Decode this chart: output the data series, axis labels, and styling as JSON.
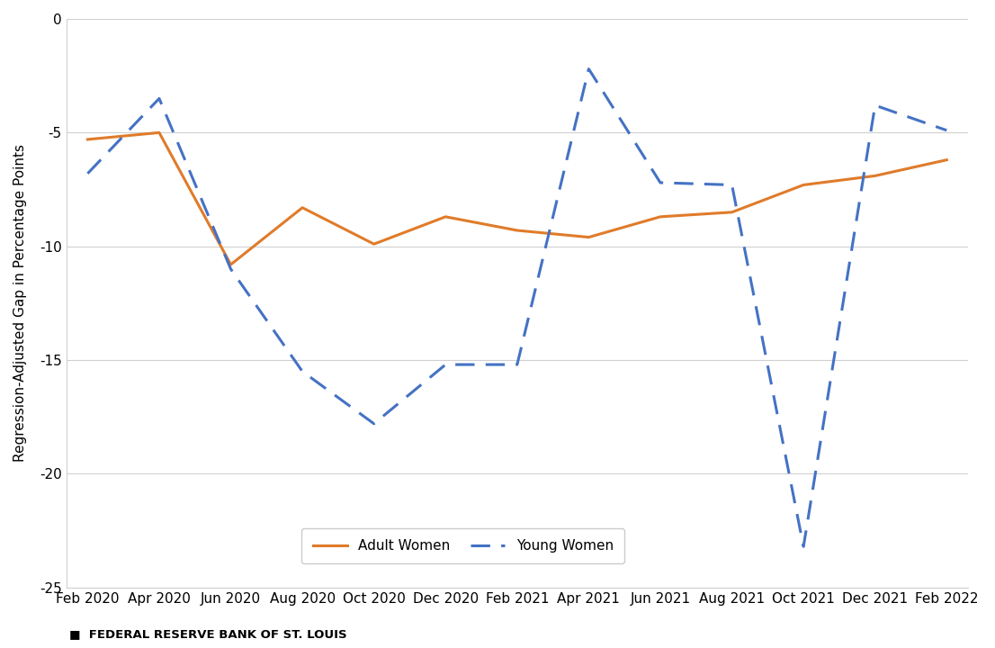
{
  "x_labels": [
    "Feb 2020",
    "Apr 2020",
    "Jun 2020",
    "Aug 2020",
    "Oct 2020",
    "Dec 2020",
    "Feb 2021",
    "Apr 2021",
    "Jun 2021",
    "Aug 2021",
    "Oct 2021",
    "Dec 2021",
    "Feb 2022"
  ],
  "adult_women": [
    -5.3,
    -5.0,
    -10.8,
    -8.3,
    -9.9,
    -8.7,
    -9.3,
    -9.6,
    -8.7,
    -8.5,
    -7.3,
    -6.9,
    -6.2
  ],
  "young_women": [
    -6.8,
    -3.5,
    -11.0,
    -15.5,
    -17.8,
    -15.2,
    -15.2,
    -2.2,
    -7.2,
    -7.3,
    -23.2,
    -3.8,
    -4.9
  ],
  "adult_color": "#E07B2A",
  "young_color": "#4472C4",
  "ylim": [
    -25,
    0
  ],
  "yticks": [
    0,
    -5,
    -10,
    -15,
    -20,
    -25
  ],
  "ylabel": "Regression-Adjusted Gap in Percentage Points",
  "legend_labels": [
    "Adult Women",
    "Young Women"
  ],
  "footer_text": "■  FEDERAL RESERVE BANK OF ST. LOUIS",
  "bg_color": "#ffffff",
  "plot_bg": "#ffffff"
}
